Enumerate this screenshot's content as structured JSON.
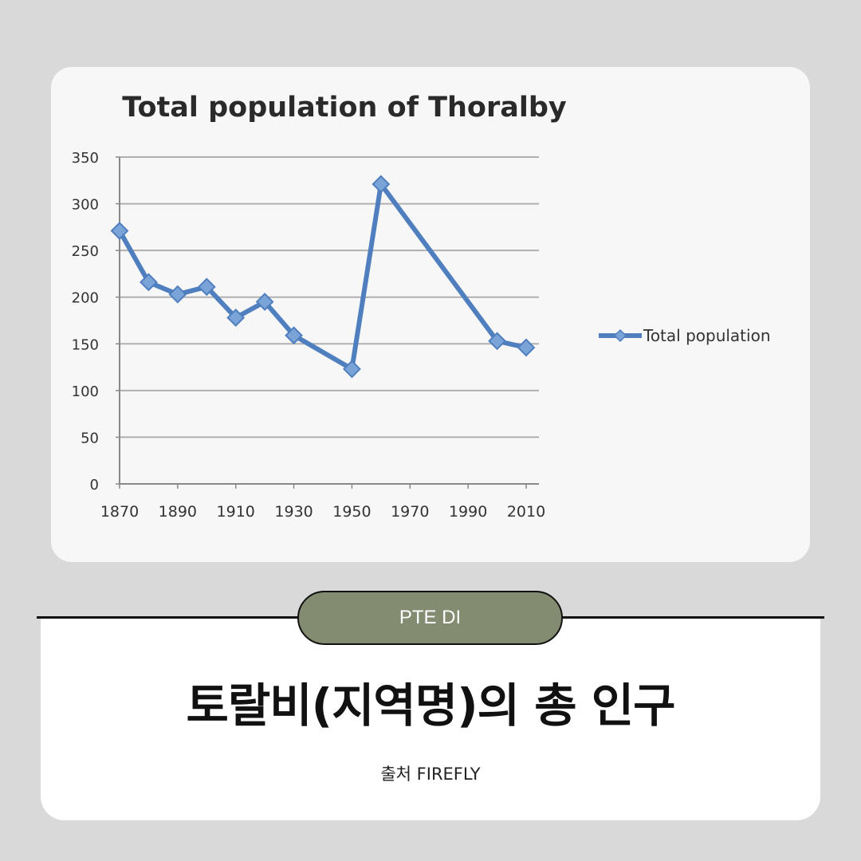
{
  "chart_data": {
    "type": "line",
    "title": "Total population of Thoralby",
    "x": [
      1870,
      1880,
      1890,
      1900,
      1910,
      1920,
      1930,
      1950,
      1960,
      2000,
      2010
    ],
    "series": [
      {
        "name": "Total population",
        "values": [
          271,
          216,
          203,
          211,
          178,
          195,
          159,
          123,
          321,
          153,
          146
        ]
      }
    ],
    "xlim": [
      1870,
      2010
    ],
    "ylim": [
      0,
      350
    ],
    "xticks": [
      1870,
      1890,
      1910,
      1930,
      1950,
      1970,
      1990,
      2010
    ],
    "yticks": [
      0,
      50,
      100,
      150,
      200,
      250,
      300,
      350
    ],
    "grid": true,
    "legend_position": "right",
    "colors": {
      "line": "#4f7fbe",
      "marker": "#7aa3d8",
      "grid": "#b0b0b0",
      "axis": "#888888"
    }
  },
  "badge": {
    "label": "PTE DI",
    "color": "#838b70"
  },
  "headline": "토랄비(지역명)의 총 인구",
  "source": "출처 FIREFLY"
}
